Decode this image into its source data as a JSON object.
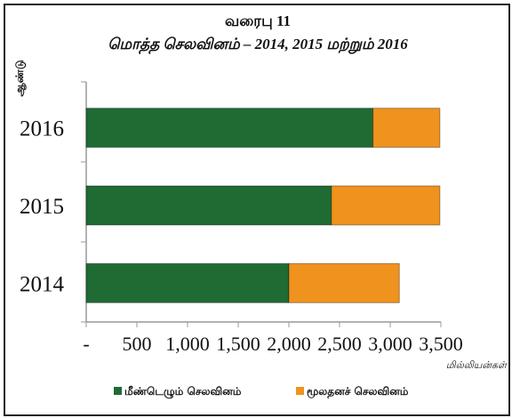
{
  "chart_data": {
    "type": "bar",
    "orientation": "horizontal",
    "stacked": true,
    "title": "வரைபு 11",
    "subtitle": "மொத்த செலவினம் – 2014, 2015 மற்றும் 2016",
    "y_label": "ஆண்டு",
    "x_label": "மில்லியன்கள்",
    "categories": [
      "2014",
      "2015",
      "2016"
    ],
    "series": [
      {
        "name": "மீண்டெழும் செலவினம்",
        "color": "#1f6b33",
        "values": [
          2000,
          2420,
          2830
        ]
      },
      {
        "name": "மூலதனச் செலவினம்",
        "color": "#f0921e",
        "values": [
          1090,
          1070,
          660
        ]
      }
    ],
    "xlim": [
      0,
      3500
    ],
    "xticks": [
      {
        "value": 0,
        "label": "-"
      },
      500,
      {
        "value": 1000,
        "label": "1,000"
      },
      {
        "value": 1500,
        "label": "1,500"
      },
      {
        "value": 2000,
        "label": "2,000"
      },
      {
        "value": 2500,
        "label": "2,500"
      },
      {
        "value": 3000,
        "label": "3,000"
      },
      {
        "value": 3500,
        "label": "3,500"
      }
    ],
    "legend": "bottom"
  }
}
